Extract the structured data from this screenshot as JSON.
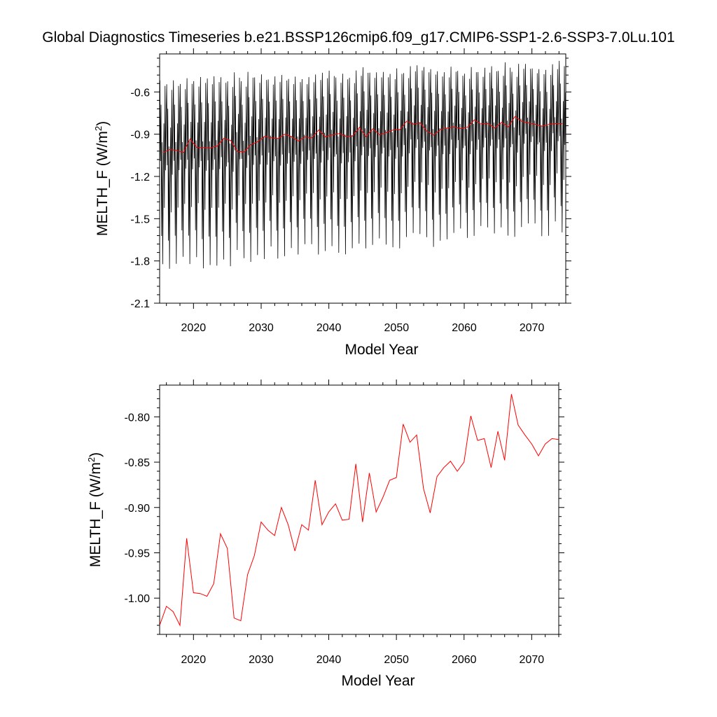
{
  "title": "Global Diagnostics Timeseries b.e21.BSSP126cmip6.f09_g17.CMIP6-SSP1-2.6-SSP3-7.0Lu.101",
  "colors": {
    "monthly": "#000000",
    "annual": "#ff0000"
  },
  "chart_data": [
    {
      "type": "line",
      "panel": "top",
      "xlabel": "Model Year",
      "ylabel_main": "MELTH_F (W/m",
      "ylabel_sup": "2",
      "ylabel_close": ")",
      "xlim": [
        2015,
        2075
      ],
      "ylim": [
        -2.1,
        -0.33
      ],
      "xticks": [
        "2020",
        "2030",
        "2040",
        "2050",
        "2060",
        "2070"
      ],
      "yticks": [
        "-0.6",
        "-0.9",
        "-1.2",
        "-1.5",
        "-1.8",
        "-2.1"
      ],
      "monthly_cycle": {
        "peak_start": -0.49,
        "peak_end": -0.38,
        "trough_start": -1.83,
        "trough_end": -1.55,
        "shoulder_start": -0.74,
        "shoulder_end": -0.62,
        "months_per_year": 12
      },
      "series": [
        {
          "x": [
            2015.5,
            2016.5,
            2017.5,
            2018.5,
            2019.5,
            2020.5,
            2021.5,
            2022.5,
            2023.5,
            2024.5,
            2025.5,
            2026.5,
            2027.5,
            2028.5,
            2029.5,
            2030.5,
            2031.5,
            2032.5,
            2033.5,
            2034.5,
            2035.5,
            2036.5,
            2037.5,
            2038.5,
            2039.5,
            2040.5,
            2041.5,
            2042.5,
            2043.5,
            2044.5,
            2045.5,
            2046.5,
            2047.5,
            2048.5,
            2049.5,
            2050.5,
            2051.5,
            2052.5,
            2053.5,
            2054.5,
            2055.5,
            2056.5,
            2057.5,
            2058.5,
            2059.5,
            2060.5,
            2061.5,
            2062.5,
            2063.5,
            2064.5,
            2065.5,
            2066.5,
            2067.5,
            2068.5,
            2069.5,
            2070.5,
            2071.5,
            2072.5,
            2073.5,
            2074.5
          ],
          "values": [
            -1.03,
            -1.009,
            -1.015,
            -1.03,
            -0.934,
            -0.994,
            -0.995,
            -0.998,
            -0.984,
            -0.929,
            -0.945,
            -1.022,
            -1.025,
            -0.974,
            -0.953,
            -0.916,
            -0.925,
            -0.931,
            -0.9,
            -0.919,
            -0.948,
            -0.919,
            -0.925,
            -0.87,
            -0.919,
            -0.905,
            -0.896,
            -0.914,
            -0.913,
            -0.852,
            -0.916,
            -0.862,
            -0.905,
            -0.889,
            -0.87,
            -0.867,
            -0.808,
            -0.828,
            -0.82,
            -0.879,
            -0.906,
            -0.866,
            -0.856,
            -0.849,
            -0.86,
            -0.85,
            -0.799,
            -0.826,
            -0.824,
            -0.856,
            -0.816,
            -0.848,
            -0.775,
            -0.809,
            -0.82,
            -0.83,
            -0.843,
            -0.83,
            -0.824,
            -0.825
          ]
        }
      ]
    },
    {
      "type": "line",
      "panel": "bottom",
      "xlabel": "Model Year",
      "ylabel_main": "MELTH_F (W/m",
      "ylabel_sup": "2",
      "ylabel_close": ")",
      "xlim": [
        2015,
        2074
      ],
      "ylim": [
        -1.04,
        -0.765
      ],
      "xticks": [
        "2020",
        "2030",
        "2040",
        "2050",
        "2060",
        "2070"
      ],
      "yticks": [
        "-0.80",
        "-0.85",
        "-0.90",
        "-0.95",
        "-1.00"
      ],
      "series": [
        {
          "x": [
            2015,
            2016,
            2017,
            2018,
            2019,
            2020,
            2021,
            2022,
            2023,
            2024,
            2025,
            2026,
            2027,
            2028,
            2029,
            2030,
            2031,
            2032,
            2033,
            2034,
            2035,
            2036,
            2037,
            2038,
            2039,
            2040,
            2041,
            2042,
            2043,
            2044,
            2045,
            2046,
            2047,
            2048,
            2049,
            2050,
            2051,
            2052,
            2053,
            2054,
            2055,
            2056,
            2057,
            2058,
            2059,
            2060,
            2061,
            2062,
            2063,
            2064,
            2065,
            2066,
            2067,
            2068,
            2069,
            2070,
            2071,
            2072,
            2073,
            2074
          ],
          "values": [
            -1.03,
            -1.009,
            -1.015,
            -1.03,
            -0.934,
            -0.994,
            -0.995,
            -0.998,
            -0.984,
            -0.929,
            -0.945,
            -1.022,
            -1.025,
            -0.974,
            -0.953,
            -0.916,
            -0.925,
            -0.931,
            -0.9,
            -0.919,
            -0.948,
            -0.919,
            -0.925,
            -0.87,
            -0.919,
            -0.905,
            -0.896,
            -0.914,
            -0.913,
            -0.852,
            -0.916,
            -0.862,
            -0.905,
            -0.889,
            -0.87,
            -0.867,
            -0.808,
            -0.828,
            -0.82,
            -0.879,
            -0.906,
            -0.866,
            -0.856,
            -0.849,
            -0.86,
            -0.85,
            -0.799,
            -0.826,
            -0.824,
            -0.856,
            -0.816,
            -0.848,
            -0.775,
            -0.809,
            -0.82,
            -0.83,
            -0.843,
            -0.83,
            -0.824,
            -0.825
          ]
        }
      ]
    }
  ]
}
